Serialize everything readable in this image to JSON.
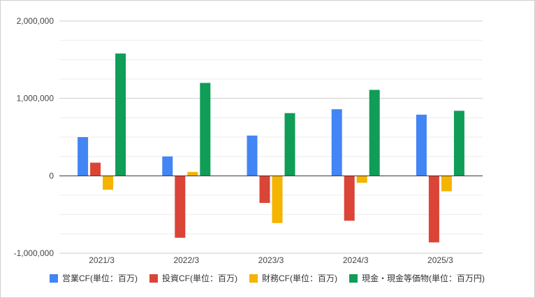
{
  "chart_data": {
    "type": "bar",
    "categories": [
      "2021/3",
      "2022/3",
      "2023/3",
      "2024/3",
      "2025/3"
    ],
    "series": [
      {
        "name": "営業CF(単位：百万)",
        "color": "#4285F4",
        "values": [
          500000,
          250000,
          520000,
          860000,
          790000
        ]
      },
      {
        "name": "投資CF(単位：百万)",
        "color": "#DB4437",
        "values": [
          170000,
          -800000,
          -350000,
          -580000,
          -860000
        ]
      },
      {
        "name": "財務CF(単位：百万)",
        "color": "#F4B400",
        "values": [
          -180000,
          50000,
          -610000,
          -90000,
          -200000
        ]
      },
      {
        "name": "現金・現金等価物(単位：百万円)",
        "color": "#0F9D58",
        "values": [
          1580000,
          1200000,
          810000,
          1110000,
          840000
        ]
      }
    ],
    "yticks": [
      -1000000,
      0,
      1000000,
      2000000
    ],
    "ytick_labels": [
      "-1,000,000",
      "0",
      "1,000,000",
      "2,000,000"
    ],
    "ylim": [
      -1000000,
      2000000
    ],
    "grid": true,
    "legend_position": "bottom"
  }
}
